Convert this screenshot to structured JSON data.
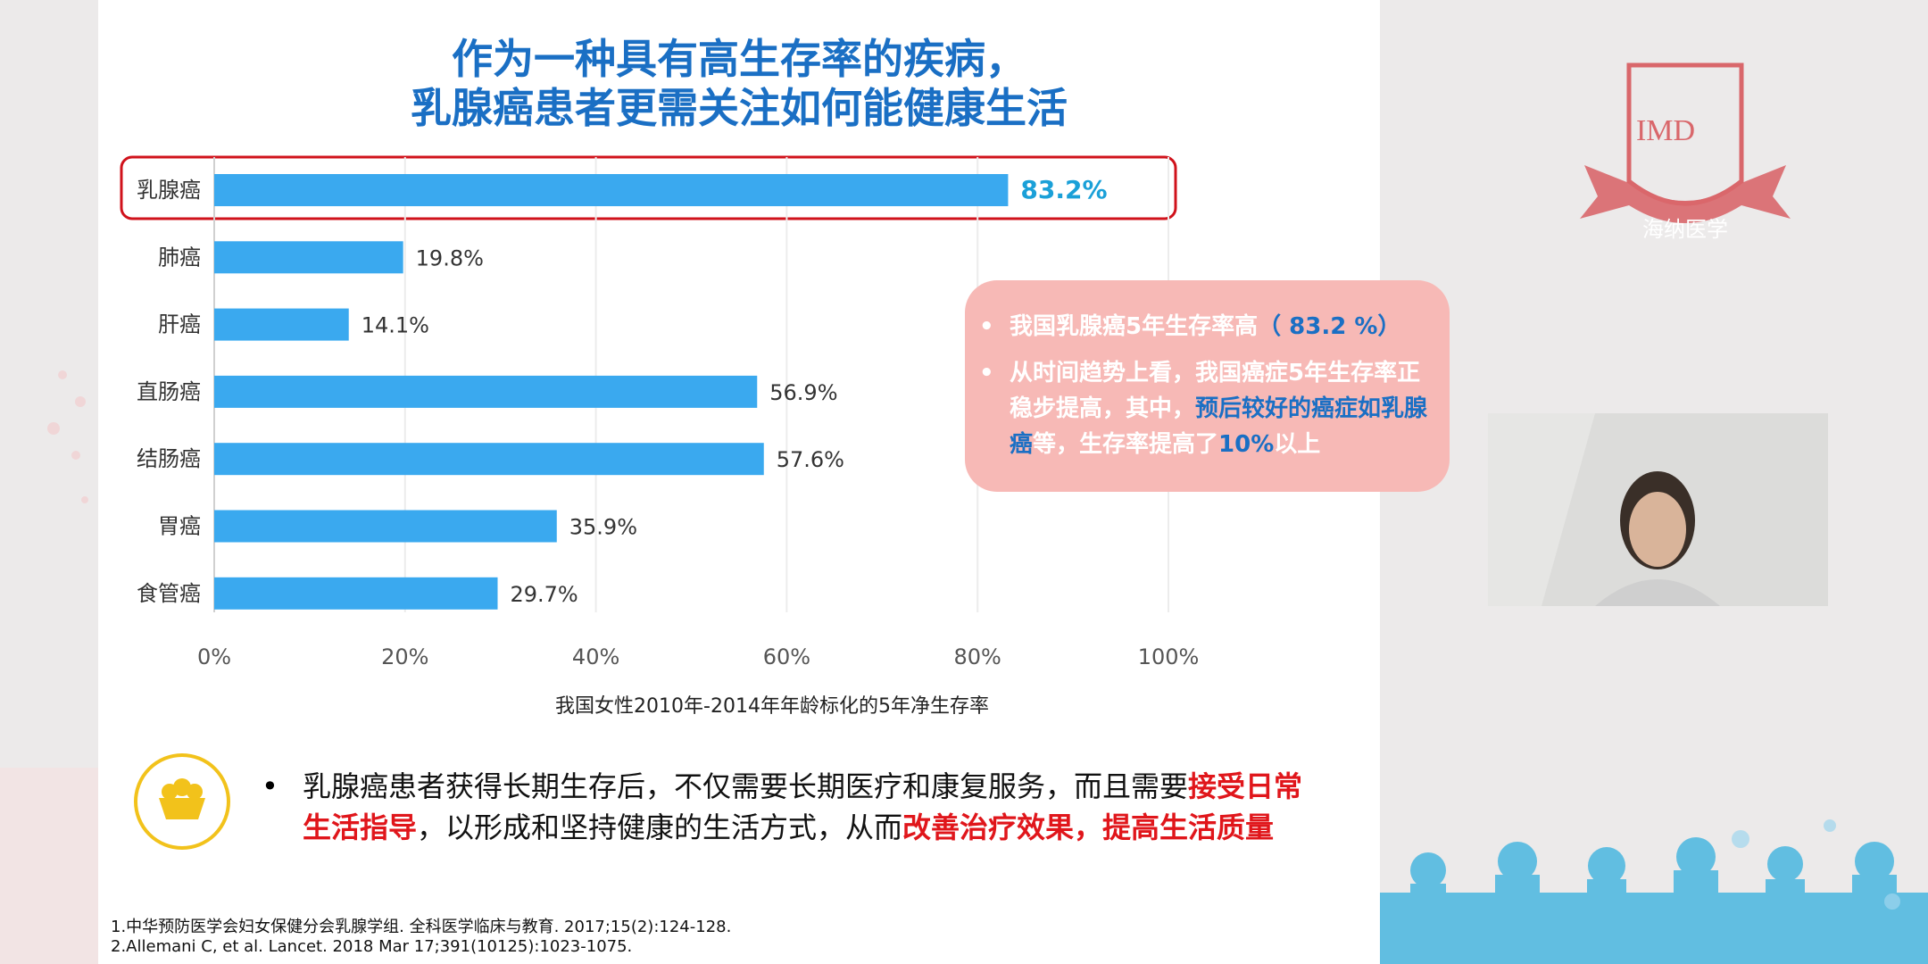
{
  "slide": {
    "title": [
      "作为一种具有高生存率的疾病，",
      "乳腺癌患者更需关注如何能健康生活"
    ],
    "callout": {
      "items": [
        [
          "我国乳腺癌5年生存率高",
          "（ 83.2 %）"
        ],
        [
          "从时间趋势上看，我国癌症5年生存率正稳步提高，其中，",
          "预后较好的癌症如乳腺癌",
          "等，生存率提高了",
          "10%",
          "以上"
        ]
      ]
    },
    "bullet": [
      "乳腺癌患者获得长期生存后，不仅需要长期医疗和康复服务，而且需要",
      "接受日常生活指导",
      "，以形成和坚持健康的生活方式，从而",
      "改善治疗效果，提高生活质量"
    ],
    "references": [
      "1.中华预防医学会妇女保健分会乳腺学组. 全科医学临床与教育. 2017;15(2):124-128.",
      "2.Allemani C, et al. Lancet. 2018 Mar 17;391(10125):1023-1075."
    ]
  },
  "chart_data": {
    "type": "hbar",
    "x_label": "我国女性2010年-2014年年龄标化的5年净生存率",
    "categories": [
      "乳腺癌",
      "肺癌",
      "肝癌",
      "直肠癌",
      "结肠癌",
      "胃癌",
      "食管癌"
    ],
    "values": [
      83.2,
      19.8,
      14.1,
      56.9,
      57.6,
      35.9,
      29.7
    ],
    "value_labels": [
      "83.2%",
      "19.8%",
      "14.1%",
      "56.9%",
      "57.6%",
      "35.9%",
      "29.7%"
    ],
    "color": "#3aa9ef",
    "xlim": [
      0,
      100
    ],
    "xticks": [
      {
        "value": 0,
        "label": "0%"
      },
      {
        "value": 20,
        "label": "20%"
      },
      {
        "value": 40,
        "label": "40%"
      },
      {
        "value": 60,
        "label": "60%"
      },
      {
        "value": 80,
        "label": "80%"
      },
      {
        "value": 100,
        "label": "100%"
      }
    ],
    "grid": true
  },
  "logo": {
    "text": "IMD",
    "subtitle": "海纳医学"
  }
}
